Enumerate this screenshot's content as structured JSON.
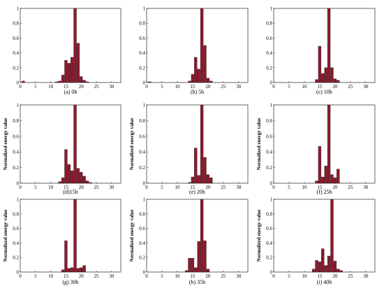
{
  "chart_data": [
    {
      "type": "bar",
      "ylabel": "",
      "caption": "(a) 0h",
      "xlim": [
        0,
        33
      ],
      "ylim": [
        0,
        1
      ],
      "xticks": [
        "0",
        "5",
        "10",
        "15",
        "20",
        "25",
        "30"
      ],
      "yticks": [
        "0",
        "0.2",
        "0.4",
        "0.6",
        "0.8",
        "1"
      ],
      "bars": [
        {
          "x": 1,
          "y": 0.02
        },
        {
          "x": 12,
          "y": 0.01
        },
        {
          "x": 13,
          "y": 0.02
        },
        {
          "x": 14,
          "y": 0.1
        },
        {
          "x": 15,
          "y": 0.3
        },
        {
          "x": 16,
          "y": 0.26
        },
        {
          "x": 17,
          "y": 0.34
        },
        {
          "x": 18,
          "y": 1.0
        },
        {
          "x": 19,
          "y": 0.53
        },
        {
          "x": 20,
          "y": 0.08
        },
        {
          "x": 21,
          "y": 0.03
        },
        {
          "x": 22,
          "y": 0.01
        }
      ]
    },
    {
      "type": "bar",
      "ylabel": "",
      "caption": "(b) 5h",
      "xlim": [
        0,
        33
      ],
      "ylim": [
        0,
        1
      ],
      "xticks": [
        "0",
        "5",
        "10",
        "15",
        "20",
        "25",
        "30"
      ],
      "yticks": [
        "0",
        "0.2",
        "0.4",
        "0.6",
        "0.8",
        "1"
      ],
      "bars": [
        {
          "x": 1,
          "y": 0.01
        },
        {
          "x": 14,
          "y": 0.02
        },
        {
          "x": 15,
          "y": 0.11
        },
        {
          "x": 16,
          "y": 0.34
        },
        {
          "x": 17,
          "y": 0.18
        },
        {
          "x": 18,
          "y": 1.0
        },
        {
          "x": 19,
          "y": 0.5
        },
        {
          "x": 20,
          "y": 0.06
        },
        {
          "x": 21,
          "y": 0.02
        }
      ]
    },
    {
      "type": "bar",
      "ylabel": "",
      "caption": "(c) 10h",
      "xlim": [
        0,
        33
      ],
      "ylim": [
        0,
        1
      ],
      "xticks": [
        "0",
        "5",
        "10",
        "15",
        "20",
        "25",
        "30"
      ],
      "yticks": [
        "0",
        "0.2",
        "0.4",
        "0.6",
        "0.8",
        "1"
      ],
      "bars": [
        {
          "x": 14,
          "y": 0.04
        },
        {
          "x": 15,
          "y": 0.49
        },
        {
          "x": 16,
          "y": 0.12
        },
        {
          "x": 17,
          "y": 0.2
        },
        {
          "x": 18,
          "y": 1.0
        },
        {
          "x": 19,
          "y": 0.2
        },
        {
          "x": 20,
          "y": 0.05
        },
        {
          "x": 21,
          "y": 0.03
        }
      ]
    },
    {
      "type": "bar",
      "ylabel": "Normalized energy value",
      "caption": "(d)15h",
      "xlim": [
        0,
        33
      ],
      "ylim": [
        0,
        1
      ],
      "xticks": [
        "0",
        "5",
        "10",
        "15",
        "20",
        "25",
        "30"
      ],
      "yticks": [
        "0",
        "0.2",
        "0.4",
        "0.6",
        "0.8",
        "1"
      ],
      "bars": [
        {
          "x": 13,
          "y": 0.02
        },
        {
          "x": 14,
          "y": 0.07
        },
        {
          "x": 15,
          "y": 0.43
        },
        {
          "x": 16,
          "y": 0.24
        },
        {
          "x": 17,
          "y": 0.16
        },
        {
          "x": 18,
          "y": 1.0
        },
        {
          "x": 19,
          "y": 0.19
        },
        {
          "x": 20,
          "y": 0.14
        },
        {
          "x": 21,
          "y": 0.09
        },
        {
          "x": 22,
          "y": 0.03
        },
        {
          "x": 23,
          "y": 0.01
        }
      ]
    },
    {
      "type": "bar",
      "ylabel": "Normalized energy value",
      "caption": "(e) 20h",
      "xlim": [
        0,
        33
      ],
      "ylim": [
        0,
        1
      ],
      "xticks": [
        "0",
        "5",
        "10",
        "15",
        "20",
        "25",
        "30"
      ],
      "yticks": [
        "0",
        "0.2",
        "0.4",
        "0.6",
        "0.8",
        "1"
      ],
      "bars": [
        {
          "x": 14,
          "y": 0.01
        },
        {
          "x": 15,
          "y": 0.08
        },
        {
          "x": 16,
          "y": 0.45
        },
        {
          "x": 17,
          "y": 0.1
        },
        {
          "x": 18,
          "y": 1.0
        },
        {
          "x": 19,
          "y": 0.33
        },
        {
          "x": 20,
          "y": 0.11
        },
        {
          "x": 21,
          "y": 0.07
        }
      ]
    },
    {
      "type": "bar",
      "ylabel": "Normalized energy value",
      "caption": "(f) 25h",
      "xlim": [
        0,
        33
      ],
      "ylim": [
        0,
        1
      ],
      "xticks": [
        "0",
        "5",
        "10",
        "15",
        "20",
        "25",
        "30"
      ],
      "yticks": [
        "0",
        "0.2",
        "0.4",
        "0.6",
        "0.8",
        "1"
      ],
      "bars": [
        {
          "x": 14,
          "y": 0.03
        },
        {
          "x": 15,
          "y": 0.47
        },
        {
          "x": 16,
          "y": 0.08
        },
        {
          "x": 17,
          "y": 0.22
        },
        {
          "x": 18,
          "y": 1.0
        },
        {
          "x": 19,
          "y": 0.11
        },
        {
          "x": 20,
          "y": 0.07
        },
        {
          "x": 21,
          "y": 0.18
        }
      ]
    },
    {
      "type": "bar",
      "ylabel": "Normalized energy value",
      "caption": "(g) 30h",
      "xlim": [
        0,
        33
      ],
      "ylim": [
        0,
        1
      ],
      "xticks": [
        "0",
        "5",
        "10",
        "15",
        "20",
        "25",
        "30"
      ],
      "yticks": [
        "0",
        "0.2",
        "0.4",
        "0.6",
        "0.8",
        "1"
      ],
      "bars": [
        {
          "x": 14,
          "y": 0.03
        },
        {
          "x": 15,
          "y": 0.43
        },
        {
          "x": 16,
          "y": 0.05
        },
        {
          "x": 17,
          "y": 0.06
        },
        {
          "x": 18,
          "y": 1.0
        },
        {
          "x": 19,
          "y": 0.05
        },
        {
          "x": 20,
          "y": 0.06
        },
        {
          "x": 21,
          "y": 0.09
        }
      ]
    },
    {
      "type": "bar",
      "ylabel": "Normalized energy value",
      "caption": "(h) 35h",
      "xlim": [
        0,
        33
      ],
      "ylim": [
        0,
        1
      ],
      "xticks": [
        "0",
        "5",
        "10",
        "15",
        "20",
        "25",
        "30"
      ],
      "yticks": [
        "0",
        "0.2",
        "0.4",
        "0.6",
        "0.8",
        "1"
      ],
      "bars": [
        {
          "x": 13,
          "y": 0.02
        },
        {
          "x": 14,
          "y": 0.19
        },
        {
          "x": 15,
          "y": 0.19
        },
        {
          "x": 16,
          "y": 0.06
        },
        {
          "x": 17,
          "y": 0.42
        },
        {
          "x": 18,
          "y": 1.0
        },
        {
          "x": 19,
          "y": 0.43
        },
        {
          "x": 20,
          "y": 0.04
        }
      ]
    },
    {
      "type": "bar",
      "ylabel": "Normalized energy value",
      "caption": "(i) 40h",
      "xlim": [
        0,
        33
      ],
      "ylim": [
        0,
        1
      ],
      "xticks": [
        "0",
        "5",
        "10",
        "15",
        "20",
        "25",
        "30"
      ],
      "yticks": [
        "0",
        "0.2",
        "0.4",
        "0.6",
        "0.8",
        "1"
      ],
      "bars": [
        {
          "x": 13,
          "y": 0.04
        },
        {
          "x": 14,
          "y": 0.16
        },
        {
          "x": 15,
          "y": 0.14
        },
        {
          "x": 16,
          "y": 0.32
        },
        {
          "x": 17,
          "y": 0.09
        },
        {
          "x": 18,
          "y": 0.22
        },
        {
          "x": 19,
          "y": 1.0
        },
        {
          "x": 20,
          "y": 0.15
        },
        {
          "x": 21,
          "y": 0.04
        },
        {
          "x": 22,
          "y": 0.02
        }
      ]
    }
  ],
  "colors": {
    "bar_fill": "#8b1a2b",
    "bar_edge": "#222222"
  }
}
